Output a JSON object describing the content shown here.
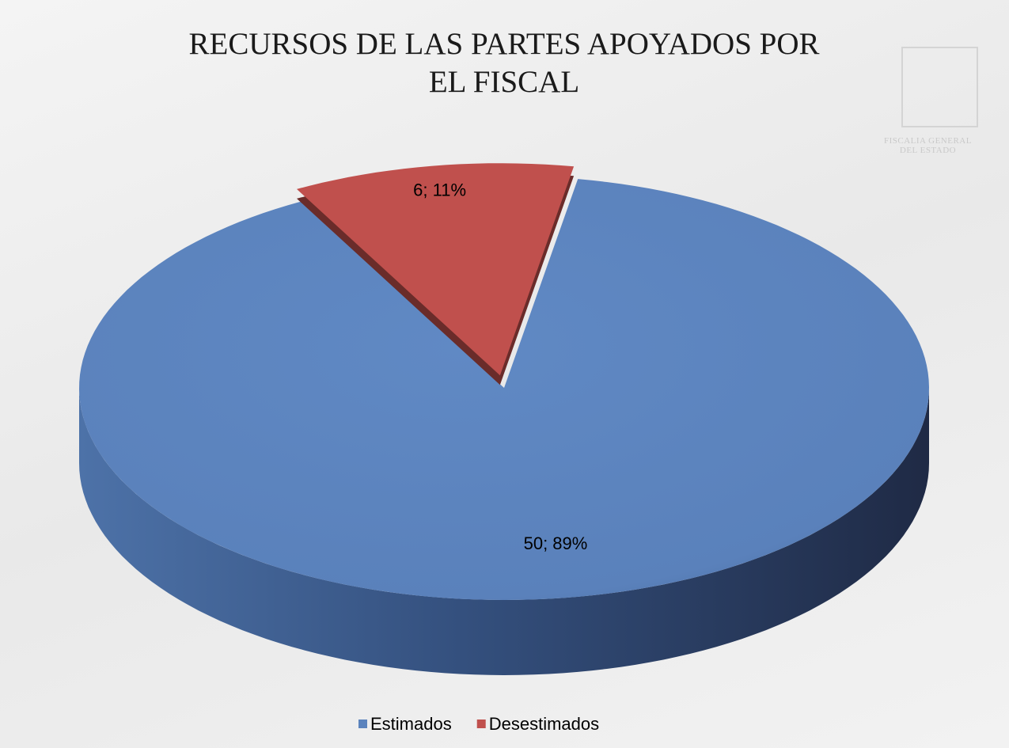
{
  "chart_data": {
    "type": "pie3d",
    "title": "RECURSOS DE LAS PARTES APOYADOS POR EL FISCAL",
    "watermark": "FISCALIA GENERAL DEL ESTADO",
    "categories": [
      "Estimados",
      "Desestimados"
    ],
    "values": [
      50,
      6
    ],
    "value_labels": [
      "50; 89%",
      "6; 11%"
    ],
    "colors": [
      "#5b83bd",
      "#c0504d"
    ],
    "legend": "bottom"
  }
}
